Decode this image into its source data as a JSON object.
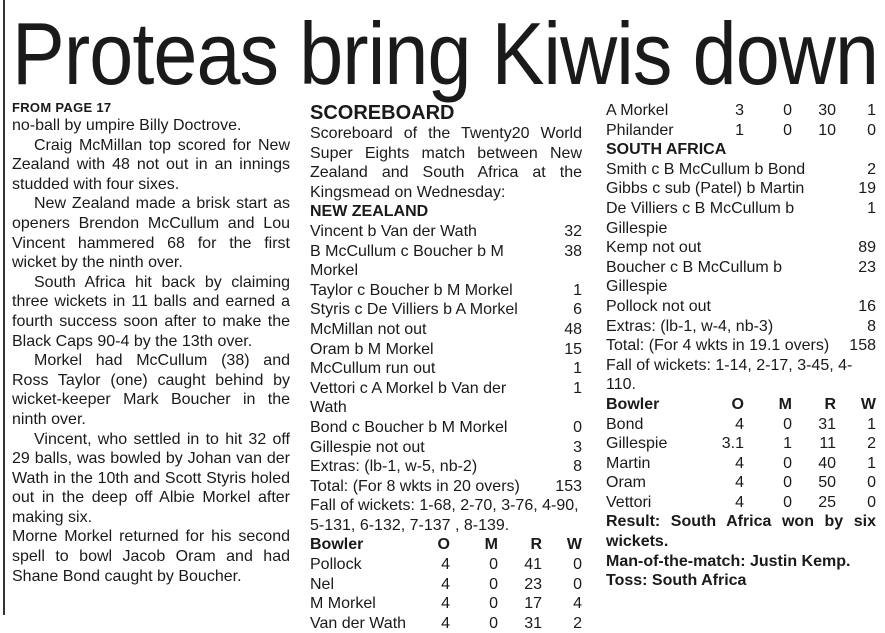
{
  "headline": "Proteas bring Kiwis down",
  "article": {
    "kicker": "FROM PAGE 17",
    "paragraphs": [
      "no-ball by umpire Billy Doctrove.",
      "Craig McMillan top scored for New Zealand with 48 not out in an innings studded with four sixes.",
      "New Zealand made a brisk start as openers Brendon McCullum and Lou Vincent hammered 68 for the first wicket by the ninth over.",
      "South Africa hit back by claiming three wickets in 11 balls and earned a fourth success soon after to make the Black Caps 90-4 by the 13th over.",
      "Morkel had McCullum (38) and Ross Taylor (one) caught behind by wicket-keeper Mark Boucher in the ninth over.",
      "Vincent, who settled in to hit 32 off 29 balls, was bowled by Johan van der Wath in the 10th and Scott Styris holed out in the deep off Albie Morkel after making six.",
      "Morne Morkel returned for his second spell to bowl Jacob Oram and had Shane Bond caught by Boucher."
    ]
  },
  "scoreboard": {
    "title": "SCOREBOARD",
    "intro": "Scoreboard of the Twenty20 World Super Eights match between New Zealand and South Africa at the Kingsmead on Wednesday:",
    "nz": {
      "team": "NEW ZEALAND",
      "batting": [
        {
          "name": "Vincent b Van der Wath",
          "runs": "32"
        },
        {
          "name": "B McCullum c Boucher b M Morkel",
          "runs": "38"
        },
        {
          "name": "Taylor c Boucher b M Morkel",
          "runs": "1"
        },
        {
          "name": "Styris c De Villiers b A Morkel",
          "runs": "6"
        },
        {
          "name": "McMillan not out",
          "runs": "48"
        },
        {
          "name": "Oram b M Morkel",
          "runs": "15"
        },
        {
          "name": "McCullum run out",
          "runs": "1"
        },
        {
          "name": "Vettori c A Morkel b Van der Wath",
          "runs": "1"
        },
        {
          "name": "Bond c Boucher b M Morkel",
          "runs": "0"
        },
        {
          "name": "Gillespie not out",
          "runs": "3"
        },
        {
          "name": "Extras: (lb-1, w-5, nb-2)",
          "runs": "8"
        },
        {
          "name": "Total: (For 8 wkts in 20 overs)",
          "runs": "153"
        }
      ],
      "fall_of_wickets": "Fall of wickets: 1-68, 2-70, 3-76, 4-90, 5-131, 6-132, 7-137 , 8-139.",
      "bowling_header": [
        "Bowler",
        "O",
        "M",
        "R",
        "W"
      ],
      "bowling": [
        [
          "Pollock",
          "4",
          "0",
          "41",
          "0"
        ],
        [
          "Nel",
          "4",
          "0",
          "23",
          "0"
        ],
        [
          "M Morkel",
          "4",
          "0",
          "17",
          "4"
        ],
        [
          "Van der Wath",
          "4",
          "0",
          "31",
          "2"
        ],
        [
          "A Morkel",
          "3",
          "0",
          "30",
          "1"
        ],
        [
          "Philander",
          "1",
          "0",
          "10",
          "0"
        ]
      ]
    },
    "sa": {
      "team": "SOUTH AFRICA",
      "batting": [
        {
          "name": "Smith c B McCullum b Bond",
          "runs": "2"
        },
        {
          "name": "Gibbs c sub (Patel) b Martin",
          "runs": "19"
        },
        {
          "name": "De Villiers c B McCullum b Gillespie",
          "runs": "1"
        },
        {
          "name": "Kemp not out",
          "runs": "89"
        },
        {
          "name": "Boucher c B McCullum b Gillespie",
          "runs": "23"
        },
        {
          "name": "Pollock not out",
          "runs": "16"
        },
        {
          "name": "Extras: (lb-1, w-4, nb-3)",
          "runs": "8"
        },
        {
          "name": "Total: (For 4 wkts in 19.1 overs)",
          "runs": "158"
        }
      ],
      "fall_of_wickets": "Fall of wickets: 1-14, 2-17, 3-45, 4-110.",
      "bowling_header": [
        "Bowler",
        "O",
        "M",
        "R",
        "W"
      ],
      "bowling": [
        [
          "Bond",
          "4",
          "0",
          "31",
          "1"
        ],
        [
          "Gillespie",
          "3.1",
          "1",
          "11",
          "2"
        ],
        [
          "Martin",
          "4",
          "0",
          "40",
          "1"
        ],
        [
          "Oram",
          "4",
          "0",
          "50",
          "0"
        ],
        [
          "Vettori",
          "4",
          "0",
          "25",
          "0"
        ]
      ]
    },
    "result": "Result: South Africa won by six wickets.",
    "motm": "Man-of-the-match: Justin Kemp.",
    "toss": "Toss: South Africa"
  }
}
